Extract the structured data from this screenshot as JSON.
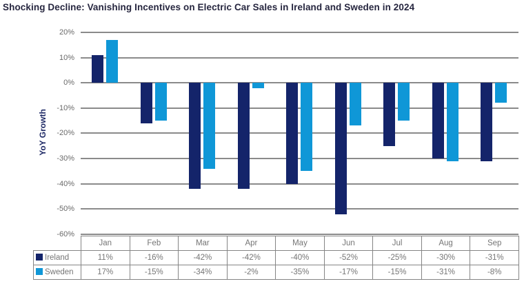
{
  "style": {
    "background": "#ffffff",
    "title_color": "#26263f",
    "axis_label_color": "#1f2a66",
    "tick_color": "#696969",
    "grid_color": "#8a8a8a",
    "table_border_color": "#848484",
    "table_text_color": "#757575"
  },
  "chart_data": {
    "type": "bar",
    "title": "Shocking Decline: Vanishing Incentives on Electric Car Sales in Ireland and Sweden in 2024",
    "xlabel": "",
    "ylabel": "YoY Growth",
    "categories": [
      "Jan",
      "Feb",
      "Mar",
      "Apr",
      "May",
      "Jun",
      "Jul",
      "Aug",
      "Sep"
    ],
    "series": [
      {
        "name": "Ireland",
        "color": "#14246a",
        "values": [
          11,
          -16,
          -42,
          -42,
          -40,
          -52,
          -25,
          -30,
          -31
        ]
      },
      {
        "name": "Sweden",
        "color": "#0f97d7",
        "values": [
          17,
          -15,
          -34,
          -2,
          -35,
          -17,
          -15,
          -31,
          -8
        ]
      }
    ],
    "ylim": [
      -60,
      20
    ],
    "ytick_labels": [
      "20%",
      "10%",
      "0%",
      "-10%",
      "-20%",
      "-30%",
      "-40%",
      "-50%",
      "-60%"
    ],
    "grid": true,
    "legend_position": "data-table-left",
    "value_suffix": "%"
  }
}
